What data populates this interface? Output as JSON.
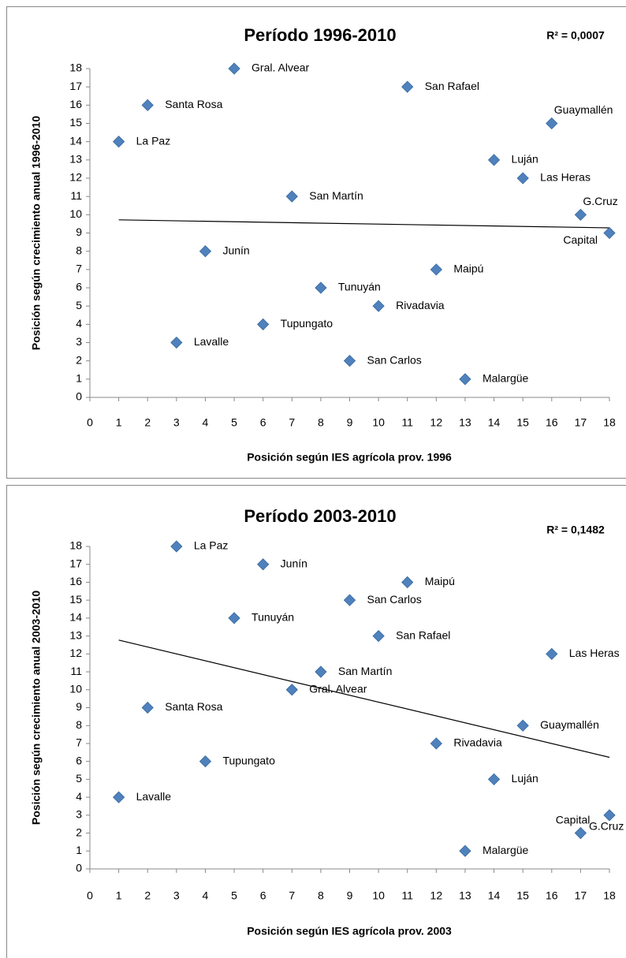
{
  "chart_data": [
    {
      "type": "scatter",
      "title": "Período 1996-2010",
      "annotation": "R² = 0,0007",
      "x_label": "Posición según IES agrícola  prov. 1996",
      "y_label": "Posición según crecimiento anual 1996-2010",
      "labels": [
        "La Paz",
        "Santa Rosa",
        "Lavalle",
        "Junín",
        "Gral. Alvear",
        "Tupungato",
        "San Martín",
        "Tunuyán",
        "San Carlos",
        "Rivadavia",
        "San Rafael",
        "Maipú",
        "Malargüe",
        "Luján",
        "Las Heras",
        "Guaymallén",
        "G.Cruz",
        "Capital"
      ],
      "x": [
        1,
        2,
        3,
        4,
        5,
        6,
        7,
        8,
        9,
        10,
        11,
        12,
        13,
        14,
        15,
        16,
        17,
        18
      ],
      "y": [
        14,
        16,
        3,
        8,
        18,
        4,
        11,
        6,
        2,
        5,
        17,
        7,
        1,
        13,
        12,
        15,
        10,
        9
      ],
      "color": "#4f81bd",
      "trendline": true,
      "xlim": [
        0,
        18
      ],
      "ylim": [
        0,
        18
      ],
      "xticks": [
        0,
        1,
        2,
        3,
        4,
        5,
        6,
        7,
        8,
        9,
        10,
        11,
        12,
        13,
        14,
        15,
        16,
        17,
        18
      ],
      "yticks": [
        0,
        1,
        2,
        3,
        4,
        5,
        6,
        7,
        8,
        9,
        10,
        11,
        12,
        13,
        14,
        15,
        16,
        17,
        18
      ]
    },
    {
      "type": "scatter",
      "title": "Período 2003-2010",
      "annotation": "R² = 0,1482",
      "x_label": "Posición según IES agrícola  prov. 2003",
      "y_label": "Posición según crecimiento anual 2003-2010",
      "labels": [
        "Lavalle",
        "Santa Rosa",
        "La Paz",
        "Tupungato",
        "Tunuyán",
        "Junín",
        "Gral. Alvear",
        "San Martín",
        "San Carlos",
        "San Rafael",
        "Maipú",
        "Rivadavia",
        "Malargüe",
        "Luján",
        "Guaymallén",
        "Las Heras",
        "Capital",
        "G.Cruz"
      ],
      "x": [
        1,
        2,
        3,
        4,
        5,
        6,
        7,
        8,
        9,
        10,
        11,
        12,
        13,
        14,
        15,
        16,
        17,
        18
      ],
      "y": [
        4,
        9,
        18,
        6,
        14,
        17,
        10,
        11,
        15,
        13,
        16,
        7,
        1,
        5,
        8,
        12,
        2,
        3
      ],
      "color": "#4f81bd",
      "trendline": true,
      "xlim": [
        0,
        18
      ],
      "ylim": [
        0,
        18
      ],
      "xticks": [
        0,
        1,
        2,
        3,
        4,
        5,
        6,
        7,
        8,
        9,
        10,
        11,
        12,
        13,
        14,
        15,
        16,
        17,
        18
      ],
      "yticks": [
        0,
        1,
        2,
        3,
        4,
        5,
        6,
        7,
        8,
        9,
        10,
        11,
        12,
        13,
        14,
        15,
        16,
        17,
        18
      ]
    }
  ]
}
